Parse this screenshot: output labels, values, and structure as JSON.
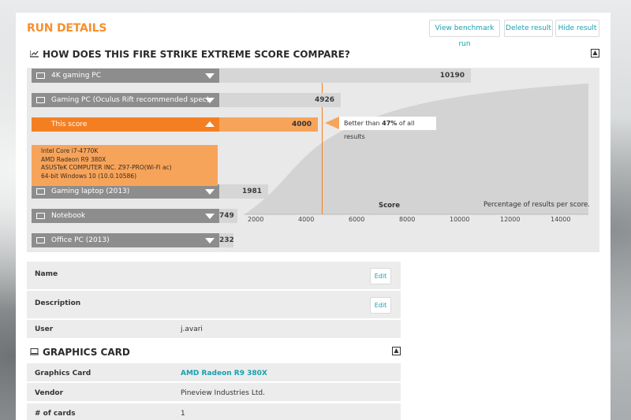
{
  "header": {
    "title": "RUN DETAILS",
    "buttons": {
      "view": "View benchmark run",
      "delete": "Delete result",
      "hide": "Hide result"
    }
  },
  "compare": {
    "title": "HOW DOES THIS FIRE STRIKE EXTREME SCORE COMPARE?",
    "callout_prefix": "Better than ",
    "callout_percent": "47%",
    "callout_suffix": " of all results",
    "this_score_details": [
      "Intel Core i7-4770K",
      "AMD Radeon R9 380X",
      "ASUSTeK COMPUTER INC. Z97-PRO(Wi-Fi ac)",
      "64-bit Windows 10 (10.0.10586)"
    ]
  },
  "chart_data": {
    "type": "bar",
    "categories": [
      "4K gaming PC",
      "Gaming PC (Oculus Rift recommended spec)",
      "This score",
      "Gaming laptop (2013)",
      "Notebook",
      "Office PC (2013)"
    ],
    "values": [
      10190,
      4926,
      4000,
      1981,
      749,
      232
    ],
    "xlabel": "Score",
    "caption": "Percentage of results per score.",
    "x_ticks": [
      2000,
      4000,
      6000,
      8000,
      10000,
      12000,
      14000
    ],
    "xlim": [
      0,
      15000
    ],
    "highlight_index": 2,
    "colors": {
      "default": "#8d8d8d",
      "highlight": "#f47f22"
    }
  },
  "details": {
    "name_label": "Name",
    "description_label": "Description",
    "user_label": "User",
    "user_value": "j.avari",
    "edit_label": "Edit"
  },
  "graphics": {
    "title": "GRAPHICS CARD",
    "card_label": "Graphics Card",
    "card_value": "AMD Radeon R9 380X",
    "vendor_label": "Vendor",
    "vendor_value": "Pineview Industries Ltd.",
    "count_label": "# of cards",
    "count_value": "1"
  }
}
